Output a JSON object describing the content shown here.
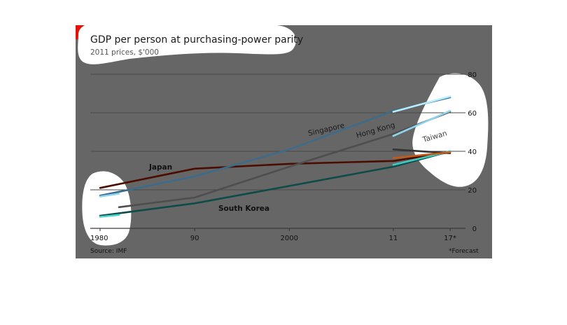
{
  "chart_data": {
    "type": "line",
    "title": "GDP per person at purchasing-power parity",
    "subtitle": "2011 prices, $'000",
    "x_tick_labels": [
      "1980",
      "90",
      "2000",
      "11",
      "17*"
    ],
    "y_ticks": [
      0,
      20,
      40,
      60,
      80
    ],
    "ylim": [
      0,
      80
    ],
    "xlim": [
      1980,
      2017
    ],
    "grid": true,
    "source": "Source: IMF",
    "footnote": "*Forecast",
    "series": [
      {
        "name": "Japan",
        "color": "#4a0d00",
        "x": [
          1980,
          1990,
          2000,
          2011,
          2017
        ],
        "y": [
          21,
          31,
          33.5,
          35,
          39.5
        ]
      },
      {
        "name": "Singapore",
        "color": "#3c6c8a",
        "x": [
          1980,
          1990,
          2000,
          2011,
          2017
        ],
        "y": [
          17,
          27,
          41,
          61,
          68
        ]
      },
      {
        "name": "Hong Kong",
        "color": "#4e4e4e",
        "x": [
          1982,
          1990,
          2000,
          2011,
          2017
        ],
        "y": [
          11,
          16,
          32,
          49,
          60.5
        ]
      },
      {
        "name": "Taiwan",
        "color": "#333333",
        "x": [
          2011,
          2017
        ],
        "y": [
          41,
          39
        ]
      },
      {
        "name": "South Korea",
        "color": "#0d4c48",
        "x": [
          1980,
          1990,
          2000,
          2011,
          2017
        ],
        "y": [
          6.5,
          13,
          22,
          32,
          40
        ]
      }
    ],
    "highlighted_series": [
      {
        "color": "#b8ecff",
        "x": [
          2011,
          2017
        ],
        "y": [
          60.5,
          68.5
        ]
      },
      {
        "color": "#8fd3ec",
        "x": [
          2011,
          2017
        ],
        "y": [
          48,
          61
        ]
      },
      {
        "color": "#8fd3ec",
        "x": [
          1980,
          1982
        ],
        "y": [
          16.5,
          18
        ]
      },
      {
        "color": "#4ad3c8",
        "x": [
          1980,
          1982
        ],
        "y": [
          6,
          7
        ]
      },
      {
        "color": "#3ec8c0",
        "x": [
          2011,
          2017
        ],
        "y": [
          33,
          40
        ]
      },
      {
        "color": "#c45a1a",
        "x": [
          2011,
          2017
        ],
        "y": [
          36.5,
          39.5
        ]
      }
    ]
  },
  "colors": {
    "background": "#666666",
    "panel": "#ffffff",
    "accent_red": "#e3120b",
    "gridline": "#4a4a4a"
  }
}
